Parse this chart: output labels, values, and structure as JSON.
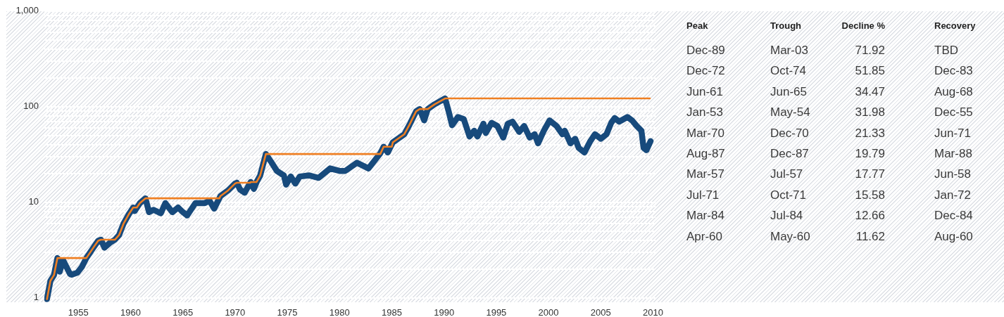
{
  "chart_data": [
    {
      "type": "line",
      "x": [
        1952.0,
        1952.1,
        1952.33,
        1952.67,
        1953.0,
        1953.22,
        1953.55,
        1954.2,
        1954.37,
        1954.9,
        1955.33,
        1955.77,
        1956.44,
        1956.9,
        1957.17,
        1957.5,
        1958.0,
        1958.5,
        1958.9,
        1959.33,
        1959.89,
        1960.25,
        1960.4,
        1960.89,
        1961.42,
        1961.77,
        1962.2,
        1962.89,
        1963.33,
        1964.0,
        1964.55,
        1965.0,
        1965.42,
        1966.2,
        1967.1,
        1967.55,
        1968.0,
        1968.6,
        1969.33,
        1970.0,
        1970.17,
        1970.5,
        1970.92,
        1971.5,
        1971.8,
        1972.1,
        1972.4,
        1972.95,
        1973.44,
        1974.0,
        1974.67,
        1974.89,
        1975.33,
        1975.77,
        1976.2,
        1977.1,
        1978.0,
        1979.1,
        1980.0,
        1980.55,
        1981.67,
        1982.77,
        1983.9,
        1984.22,
        1984.62,
        1985.1,
        1986.2,
        1986.67,
        1987.33,
        1987.67,
        1988.1,
        1988.44,
        1989.1,
        1990.1,
        1990.44,
        1990.77,
        1991.33,
        1991.89,
        1992.44,
        1992.89,
        1993.2,
        1993.77,
        1994.0,
        1994.55,
        1995.1,
        1995.67,
        1996.1,
        1996.55,
        1997.2,
        1997.67,
        1998.2,
        1998.67,
        1999.0,
        1999.55,
        2000.1,
        2000.77,
        2001.33,
        2001.55,
        2002.1,
        2002.55,
        2002.89,
        2003.44,
        2004.0,
        2004.44,
        2005.0,
        2005.55,
        2006.0,
        2006.33,
        2006.77,
        2007.55,
        2008.0,
        2008.44,
        2008.89,
        2009.1,
        2009.37,
        2009.77
      ],
      "series": [
        {
          "color": "#174a7c",
          "values": [
            0.97,
            1.11,
            1.51,
            1.73,
            2.61,
            1.88,
            2.47,
            1.78,
            1.75,
            1.83,
            2.1,
            2.61,
            3.35,
            3.96,
            4.06,
            3.35,
            3.75,
            4.06,
            4.54,
            5.98,
            7.67,
            8.82,
            8.1,
            9.8,
            11,
            7.88,
            8.34,
            7.67,
            9.8,
            7.88,
            8.82,
            7.9,
            7.28,
            9.8,
            9.8,
            10.4,
            8.58,
            11.6,
            13.3,
            15.7,
            16,
            13.5,
            12.6,
            16.3,
            13.8,
            16.6,
            19,
            32,
            26.6,
            21.3,
            19.1,
            15.3,
            18.6,
            15.7,
            18.6,
            19.1,
            18,
            22.6,
            21.3,
            21.3,
            25.9,
            22.6,
            32.5,
            38.1,
            33.2,
            42.4,
            51.5,
            64,
            89.5,
            94.5,
            72,
            94.5,
            106,
            122,
            89.5,
            64,
            78,
            74.1,
            48.8,
            56,
            48.8,
            66.3,
            53,
            67.8,
            62.8,
            47.5,
            66.3,
            69.8,
            54.5,
            62.8,
            47.5,
            51.5,
            41.4,
            56,
            71.8,
            62.8,
            51.5,
            56,
            41.4,
            46.2,
            37,
            33.2,
            43.6,
            51.5,
            46.2,
            51.5,
            67.8,
            76.1,
            69.8,
            78,
            71.8,
            62.8,
            56,
            37,
            35.1,
            43.6
          ]
        },
        {
          "color": "#ef7f22",
          "x": [
            1952.0,
            1952.1,
            1952.33,
            1952.67,
            1953.0,
            1955.77,
            1956.44,
            1956.9,
            1957.17,
            1958.5,
            1958.9,
            1959.33,
            1959.89,
            1960.25,
            1960.6,
            1960.89,
            1961.42,
            1968.5,
            1968.6,
            1969.33,
            1970.0,
            1970.17,
            1971.45,
            1971.5,
            1972.05,
            1972.1,
            1972.4,
            1972.95,
            1983.9,
            1984.22,
            1985.0,
            1985.1,
            1986.2,
            1986.67,
            1987.33,
            1987.67,
            1988.44,
            1989.1,
            1990.1,
            2009.7
          ],
          "values": [
            0.97,
            1.11,
            1.51,
            1.73,
            2.61,
            2.61,
            3.35,
            3.96,
            4.06,
            4.06,
            4.54,
            5.98,
            7.67,
            8.82,
            8.82,
            9.8,
            11,
            11,
            11.6,
            13.3,
            15.7,
            16,
            16,
            16.3,
            16.3,
            16.6,
            19,
            32,
            32,
            38.1,
            38.1,
            42.4,
            51.5,
            64,
            89.5,
            94.5,
            94.5,
            106,
            122,
            122
          ]
        }
      ],
      "xlim": [
        1951.75,
        2010.25
      ],
      "xticks": [
        1955,
        1960,
        1965,
        1970,
        1975,
        1980,
        1985,
        1990,
        1995,
        2000,
        2005,
        2010
      ],
      "ylim": [
        0.9,
        1000
      ],
      "yticks": [
        1,
        {
          "value": 2,
          "label": null
        },
        {
          "value": 3,
          "label": null
        },
        {
          "value": 4,
          "label": null
        },
        {
          "value": 5,
          "label": null
        },
        {
          "value": 6,
          "label": null
        },
        {
          "value": 7,
          "label": null
        },
        {
          "value": 8,
          "label": null
        },
        {
          "value": 9,
          "label": null
        },
        10,
        {
          "value": 20,
          "label": null
        },
        {
          "value": 30,
          "label": null
        },
        {
          "value": 40,
          "label": null
        },
        {
          "value": 50,
          "label": null
        },
        {
          "value": 60,
          "label": null
        },
        {
          "value": 70,
          "label": null
        },
        {
          "value": 80,
          "label": null
        },
        {
          "value": 90,
          "label": null
        },
        100,
        {
          "value": 200,
          "label": null
        },
        {
          "value": 300,
          "label": null
        },
        {
          "value": 400,
          "label": null
        },
        {
          "value": 500,
          "label": null
        },
        {
          "value": 600,
          "label": null
        },
        {
          "value": 700,
          "label": null
        },
        {
          "value": 800,
          "label": null
        },
        {
          "value": 900,
          "label": null
        },
        {
          "value": 1000,
          "label": "1,000"
        }
      ],
      "log": true,
      "grid": "y"
    },
    {
      "type": "other",
      "annotations": [
        "Peak",
        "Trough",
        "Decline %",
        "Recovery",
        "Dec-89",
        "Mar-03",
        "71.92",
        "TBD",
        "Dec-72",
        "Oct-74",
        "51.85",
        "Dec-83",
        "Jun-61",
        "Jun-65",
        "34.47",
        "Aug-68",
        "Jan-53",
        "May-54",
        "31.98",
        "Dec-55",
        "Mar-70",
        "Dec-70",
        "21.33",
        "Jun-71",
        "Aug-87",
        "Dec-87",
        "19.79",
        "Mar-88",
        "Mar-57",
        "Jul-57",
        "17.77",
        "Jun-58",
        "Jul-71",
        "Oct-71",
        "15.58",
        "Jan-72",
        "Mar-84",
        "Jul-84",
        "12.66",
        "Dec-84",
        "Apr-60",
        "May-60",
        "11.62",
        "Aug-60"
      ]
    }
  ]
}
